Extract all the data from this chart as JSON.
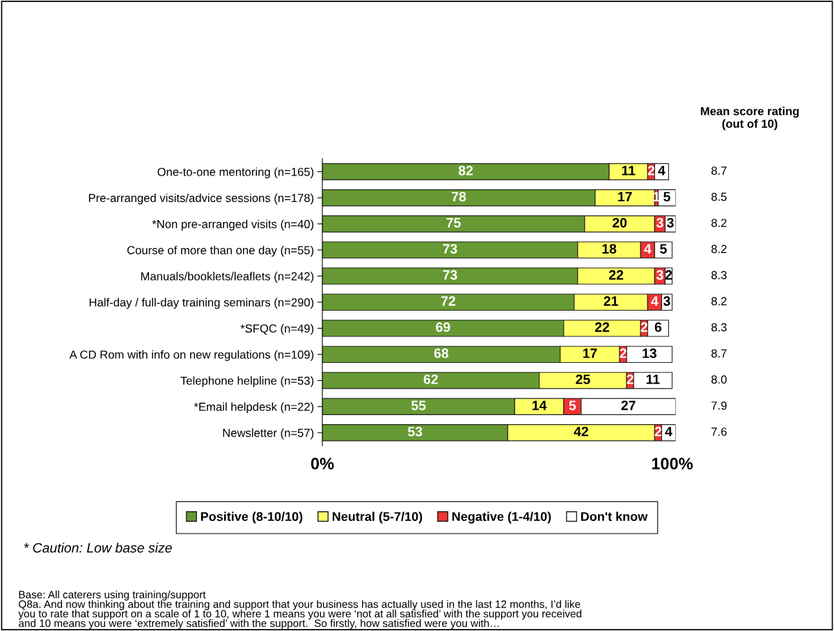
{
  "chart_data": {
    "type": "bar",
    "orientation": "horizontal",
    "stacked": true,
    "data_labels": true,
    "legend": "bottom",
    "grid": false,
    "categories": [
      "One-to-one mentoring (n=165)",
      "Pre-arranged visits/advice sessions (n=178)",
      "*Non pre-arranged visits (n=40)",
      "Course of more than one day (n=55)",
      "Manuals/booklets/leaflets (n=242)",
      "Half-day / full-day training seminars (n=290)",
      "*SFQC (n=49)",
      "A CD Rom with info on new regulations (n=109)",
      "Telephone helpline (n=53)",
      "*Email helpdesk (n=22)",
      "Newsletter (n=57)"
    ],
    "series": [
      {
        "name": "Positive (8-10/10)",
        "color": "#669933",
        "values": [
          82,
          78,
          75,
          73,
          73,
          72,
          69,
          68,
          62,
          55,
          53
        ]
      },
      {
        "name": "Neutral (5-7/10)",
        "color": "#ffff66",
        "values": [
          11,
          17,
          20,
          18,
          22,
          21,
          22,
          17,
          25,
          14,
          42
        ]
      },
      {
        "name": "Negative (1-4/10)",
        "color": "#ee3333",
        "values": [
          2,
          1,
          3,
          4,
          3,
          4,
          2,
          2,
          2,
          5,
          2
        ]
      },
      {
        "name": "Don't know",
        "color": "#ffffff",
        "values": [
          4,
          5,
          3,
          5,
          2,
          3,
          6,
          13,
          11,
          27,
          4
        ]
      }
    ],
    "xlim": [
      0,
      101
    ],
    "xticks": [
      {
        "value": 0,
        "label": "0%"
      },
      {
        "value": 100,
        "label": "100%"
      }
    ],
    "tick_labels": "x",
    "annotations": [
      "Mean score rating\n(out of 10)",
      "8.7",
      "8.5",
      "8.2",
      "8.2",
      "8.3",
      "8.2",
      "8.3",
      "8.7",
      "8.0",
      "7.9",
      "7.6",
      "* Caution: Low base size",
      "Base: All caterers using training/support\nQ8a. And now thinking about the training and support that your business has actually used in the last 12 months, I’d like\nyou to rate that support on a scale of 1 to 10, where 1 means you were ‘not at all satisfied’ with the support you received\nand 10 means you were ‘extremely satisfied’ with the support.  So firstly, how satisfied were you with…"
    ]
  }
}
